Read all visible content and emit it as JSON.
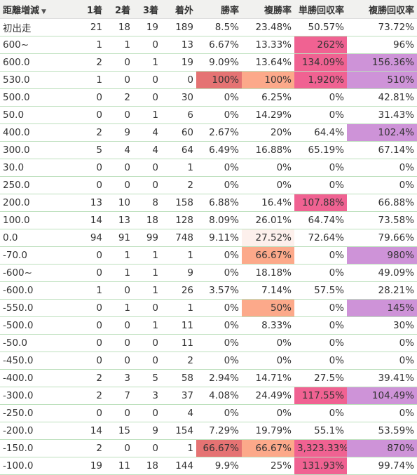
{
  "chart_data": {
    "type": "table",
    "sort_column": "距離増減",
    "columns": [
      "距離増減",
      "1着",
      "2着",
      "3着",
      "着外",
      "勝率",
      "複勝率",
      "単勝回収率",
      "複勝回収率"
    ],
    "rows": [
      [
        "初出走",
        "21",
        "18",
        "19",
        "189",
        "8.5%",
        "23.48%",
        "50.57%",
        "73.72%"
      ],
      [
        "600~",
        "1",
        "1",
        "0",
        "13",
        "6.67%",
        "13.33%",
        "262%",
        "96%"
      ],
      [
        "600.0",
        "2",
        "0",
        "1",
        "19",
        "9.09%",
        "13.64%",
        "134.09%",
        "156.36%"
      ],
      [
        "530.0",
        "1",
        "0",
        "0",
        "0",
        "100%",
        "100%",
        "1,920%",
        "510%"
      ],
      [
        "500.0",
        "0",
        "2",
        "0",
        "30",
        "0%",
        "6.25%",
        "0%",
        "42.81%"
      ],
      [
        "50.0",
        "0",
        "0",
        "1",
        "6",
        "0%",
        "14.29%",
        "0%",
        "31.43%"
      ],
      [
        "400.0",
        "2",
        "9",
        "4",
        "60",
        "2.67%",
        "20%",
        "64.4%",
        "102.4%"
      ],
      [
        "300.0",
        "5",
        "4",
        "4",
        "64",
        "6.49%",
        "16.88%",
        "65.19%",
        "67.14%"
      ],
      [
        "30.0",
        "0",
        "0",
        "0",
        "1",
        "0%",
        "0%",
        "0%",
        "0%"
      ],
      [
        "250.0",
        "0",
        "0",
        "0",
        "2",
        "0%",
        "0%",
        "0%",
        "0%"
      ],
      [
        "200.0",
        "13",
        "10",
        "8",
        "158",
        "6.88%",
        "16.4%",
        "107.88%",
        "66.88%"
      ],
      [
        "100.0",
        "14",
        "13",
        "18",
        "128",
        "8.09%",
        "26.01%",
        "64.74%",
        "73.58%"
      ],
      [
        "0.0",
        "94",
        "91",
        "99",
        "748",
        "9.11%",
        "27.52%",
        "72.64%",
        "79.66%"
      ],
      [
        "-70.0",
        "0",
        "1",
        "1",
        "1",
        "0%",
        "66.67%",
        "0%",
        "980%"
      ],
      [
        "-600~",
        "0",
        "1",
        "1",
        "9",
        "0%",
        "18.18%",
        "0%",
        "49.09%"
      ],
      [
        "-600.0",
        "1",
        "0",
        "1",
        "26",
        "3.57%",
        "7.14%",
        "57.5%",
        "28.21%"
      ],
      [
        "-550.0",
        "0",
        "1",
        "0",
        "1",
        "0%",
        "50%",
        "0%",
        "145%"
      ],
      [
        "-500.0",
        "0",
        "0",
        "1",
        "11",
        "0%",
        "8.33%",
        "0%",
        "30%"
      ],
      [
        "-50.0",
        "0",
        "0",
        "0",
        "11",
        "0%",
        "0%",
        "0%",
        "0%"
      ],
      [
        "-450.0",
        "0",
        "0",
        "0",
        "2",
        "0%",
        "0%",
        "0%",
        "0%"
      ],
      [
        "-400.0",
        "2",
        "3",
        "5",
        "58",
        "2.94%",
        "14.71%",
        "27.5%",
        "39.41%"
      ],
      [
        "-300.0",
        "2",
        "7",
        "3",
        "37",
        "4.08%",
        "24.49%",
        "117.55%",
        "104.49%"
      ],
      [
        "-250.0",
        "0",
        "0",
        "0",
        "4",
        "0%",
        "0%",
        "0%",
        "0%"
      ],
      [
        "-200.0",
        "14",
        "15",
        "9",
        "154",
        "7.29%",
        "19.79%",
        "55.1%",
        "53.59%"
      ],
      [
        "-150.0",
        "2",
        "0",
        "0",
        "1",
        "66.67%",
        "66.67%",
        "3,323.33%",
        "870%"
      ],
      [
        "-100.0",
        "19",
        "11",
        "18",
        "144",
        "9.9%",
        "25%",
        "131.93%",
        "99.74%"
      ]
    ],
    "heatmap_colors": {
      "win_rate": "#e57373",
      "place_rate": "#fca98a",
      "place_rate_light": "#fdf0ec",
      "win_return": "#f06292",
      "place_return": "#ce93d8"
    }
  }
}
